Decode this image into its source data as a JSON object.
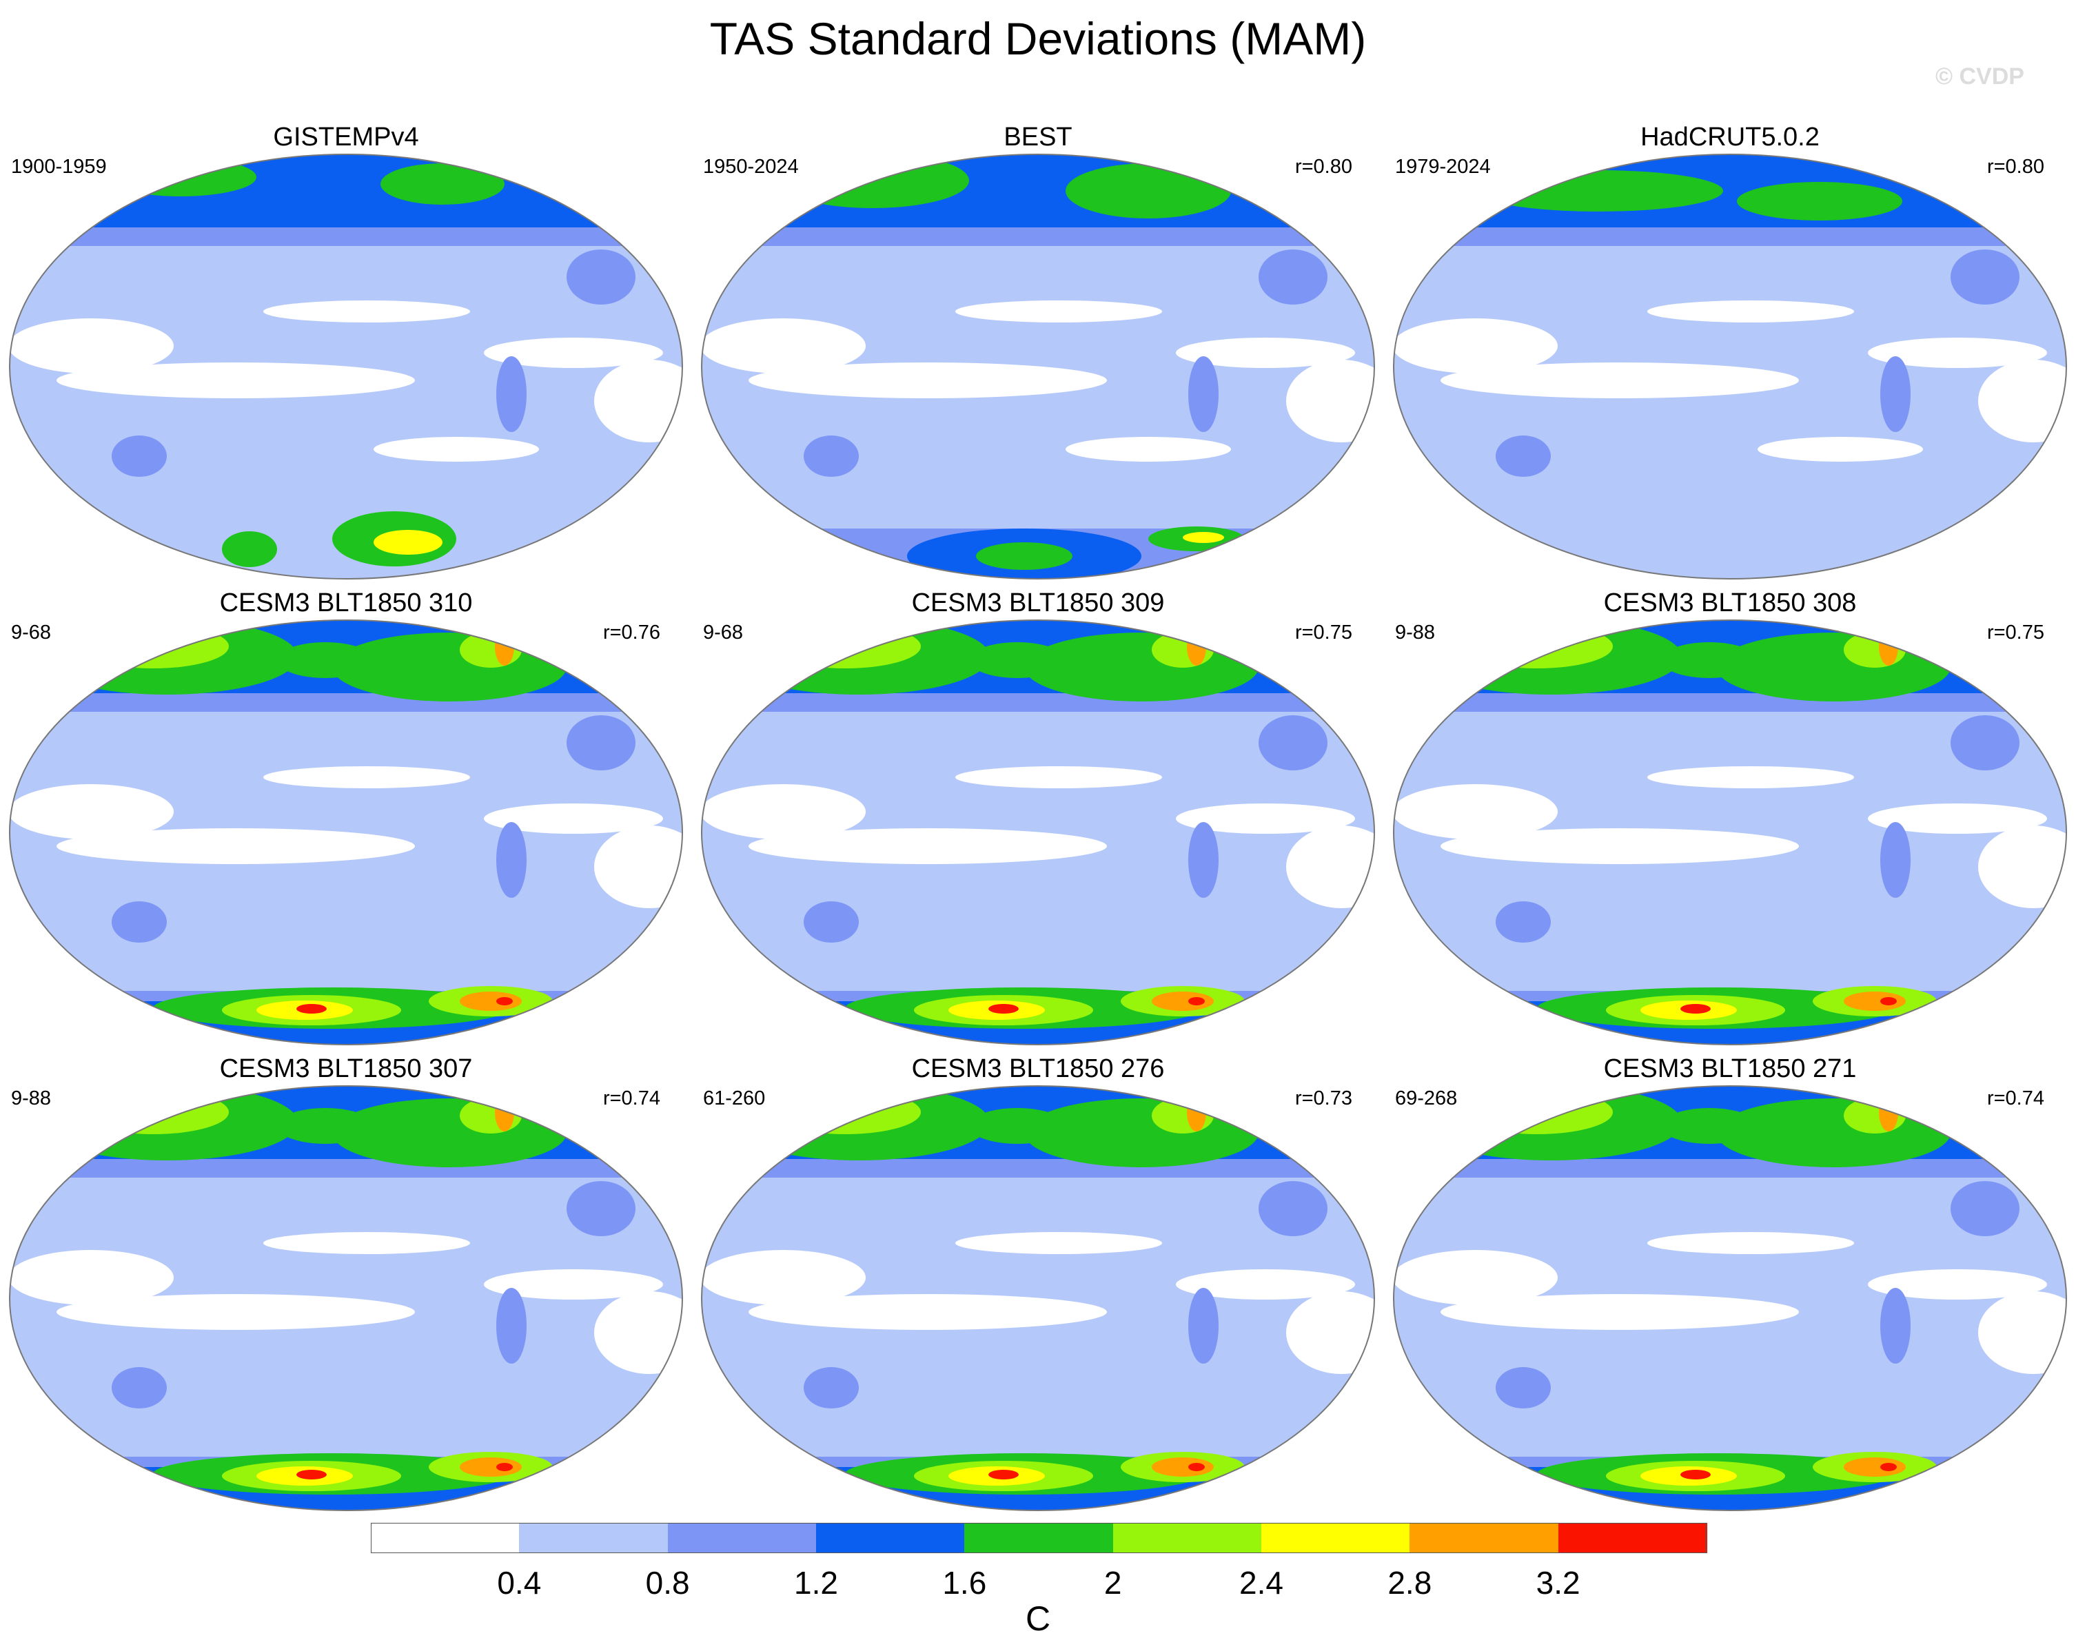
{
  "figure": {
    "title": "TAS Standard Deviations (MAM)",
    "watermark": "© CVDP"
  },
  "chart_data": {
    "type": "heatmap",
    "variable": "TAS",
    "statistic": "Standard Deviations",
    "season": "MAM",
    "units": "C",
    "colorbar": {
      "levels": [
        0.4,
        0.8,
        1.2,
        1.6,
        2.0,
        2.4,
        2.8,
        3.2
      ],
      "tick_labels": [
        "0.4",
        "0.8",
        "1.2",
        "1.6",
        "2",
        "2.4",
        "2.8",
        "3.2"
      ],
      "colors": [
        "#ffffff",
        "#b4c8fa",
        "#7d96f5",
        "#0a5ff0",
        "#1ec31e",
        "#96f50a",
        "#ffff00",
        "#ffa000",
        "#fa1400"
      ],
      "units": "C"
    },
    "panels": [
      {
        "title": "GISTEMPv4",
        "period": "1900-1959",
        "corr": ""
      },
      {
        "title": "BEST",
        "period": "1950-2024",
        "corr": "r=0.80"
      },
      {
        "title": "HadCRUT5.0.2",
        "period": "1979-2024",
        "corr": "r=0.80"
      },
      {
        "title": "CESM3 BLT1850 310",
        "period": "9-68",
        "corr": "r=0.76"
      },
      {
        "title": "CESM3 BLT1850 309",
        "period": "9-68",
        "corr": "r=0.75"
      },
      {
        "title": "CESM3 BLT1850 308",
        "period": "9-88",
        "corr": "r=0.75"
      },
      {
        "title": "CESM3 BLT1850 307",
        "period": "9-88",
        "corr": "r=0.74"
      },
      {
        "title": "CESM3 BLT1850 276",
        "period": "61-260",
        "corr": "r=0.73"
      },
      {
        "title": "CESM3 BLT1850 271",
        "period": "69-268",
        "corr": "r=0.74"
      }
    ]
  }
}
